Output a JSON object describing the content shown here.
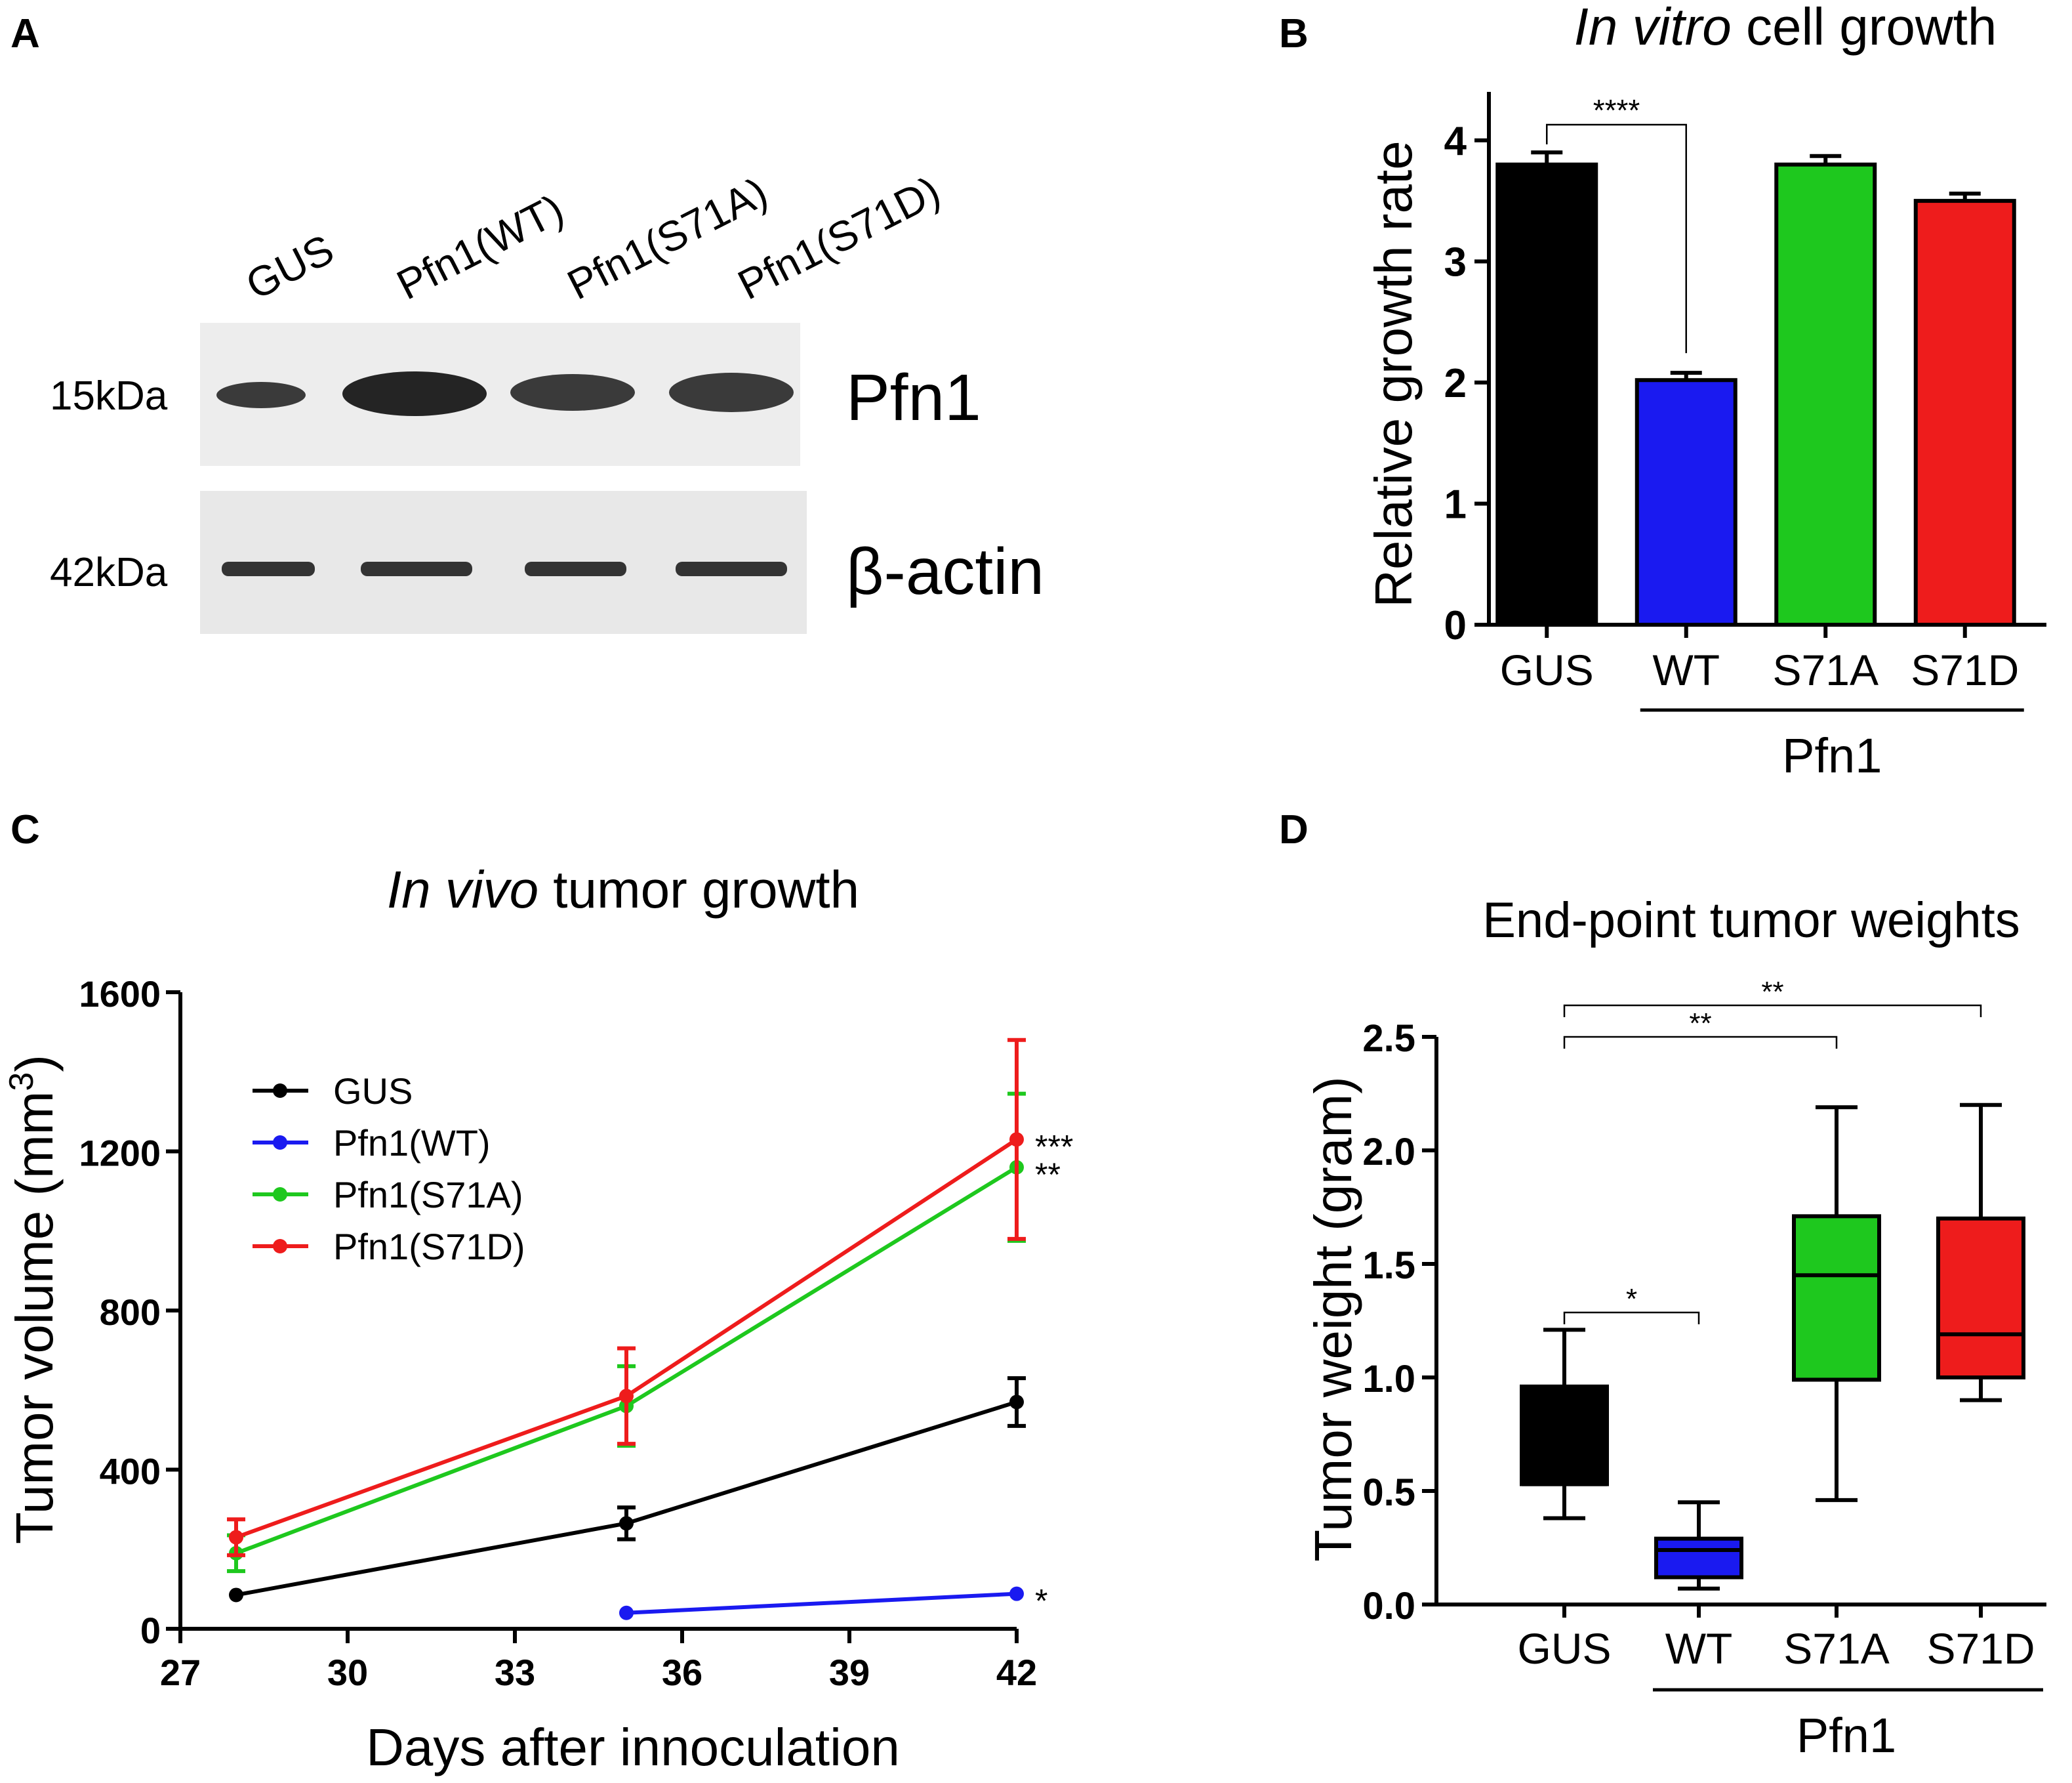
{
  "panel_labels": {
    "a": "A",
    "b": "B",
    "c": "C",
    "d": "D"
  },
  "colors": {
    "GUS": "#000000",
    "WT": "#1a1af0",
    "S71A": "#1ec81e",
    "S71D": "#ee1c1c"
  },
  "blot": {
    "lanes": [
      "GUS",
      "Pfn1(WT)",
      "Pfn1(S71A)",
      "Pfn1(S71D)"
    ],
    "markers": {
      "pfn1": "15kDa",
      "actin": "42kDa"
    },
    "proteins": {
      "pfn1": "Pfn1",
      "actin": "β-actin"
    }
  },
  "chart_data": [
    {
      "panel": "B",
      "type": "bar",
      "title_italic": "In vitro",
      "title_rest": " cell growth",
      "categories": [
        "GUS",
        "WT",
        "S71A",
        "S71D"
      ],
      "values": [
        3.8,
        2.02,
        3.8,
        3.5
      ],
      "errors": [
        0.1,
        0.06,
        0.07,
        0.06
      ],
      "ylabel": "Relative growth rate",
      "ylim": [
        0,
        4.4
      ],
      "yticks": [
        "0",
        "1",
        "2",
        "3",
        "4"
      ],
      "group_label": "Pfn1",
      "significance": [
        {
          "from": "GUS",
          "to": "WT",
          "label": "****"
        }
      ]
    },
    {
      "panel": "C",
      "type": "line",
      "title_italic": "In vivo",
      "title_rest": " tumor growth",
      "xlabel": "Days after innoculation",
      "ylabel_main": "Tumor volume (mm",
      "ylabel_sup": "3",
      "ylabel_end": ")",
      "xlim": [
        27,
        42
      ],
      "ylim": [
        0,
        1600
      ],
      "xticks": [
        "27",
        "30",
        "33",
        "36",
        "39",
        "42"
      ],
      "yticks": [
        "0",
        "400",
        "800",
        "1200",
        "1600"
      ],
      "series": [
        {
          "name": "GUS",
          "x": [
            28,
            35,
            42
          ],
          "y": [
            85,
            265,
            570
          ],
          "err": [
            0,
            40,
            60
          ],
          "sig": ""
        },
        {
          "name": "Pfn1(WT)",
          "x": [
            35,
            42
          ],
          "y": [
            40,
            88
          ],
          "err": [
            0,
            0
          ],
          "sig": "*"
        },
        {
          "name": "Pfn1(S71A)",
          "x": [
            28,
            35,
            42
          ],
          "y": [
            190,
            560,
            1160
          ],
          "err": [
            45,
            100,
            185
          ],
          "sig": "**"
        },
        {
          "name": "Pfn1(S71D)",
          "x": [
            28,
            35,
            42
          ],
          "y": [
            230,
            585,
            1230
          ],
          "err": [
            45,
            120,
            250
          ],
          "sig": "***"
        }
      ]
    },
    {
      "panel": "D",
      "type": "box",
      "title": "End-point tumor weights",
      "categories": [
        "GUS",
        "WT",
        "S71A",
        "S71D"
      ],
      "boxes": [
        {
          "min": 0.38,
          "q1": 0.53,
          "median": 0.53,
          "q3": 0.96,
          "max": 1.21
        },
        {
          "min": 0.07,
          "q1": 0.12,
          "median": 0.24,
          "q3": 0.29,
          "max": 0.45
        },
        {
          "min": 0.46,
          "q1": 0.99,
          "median": 1.45,
          "q3": 1.71,
          "max": 2.19
        },
        {
          "min": 0.9,
          "q1": 1.0,
          "median": 1.19,
          "q3": 1.7,
          "max": 2.2
        }
      ],
      "ylabel": "Tumor weight (gram)",
      "ylim": [
        0,
        2.5
      ],
      "yticks": [
        "0.0",
        "0.5",
        "1.0",
        "1.5",
        "2.0",
        "2.5"
      ],
      "group_label": "Pfn1",
      "significance": [
        {
          "from": "GUS",
          "to": "WT",
          "label": "*"
        },
        {
          "from": "GUS",
          "to": "S71A",
          "label": "**"
        },
        {
          "from": "GUS",
          "to": "S71D",
          "label": "**"
        }
      ]
    }
  ]
}
